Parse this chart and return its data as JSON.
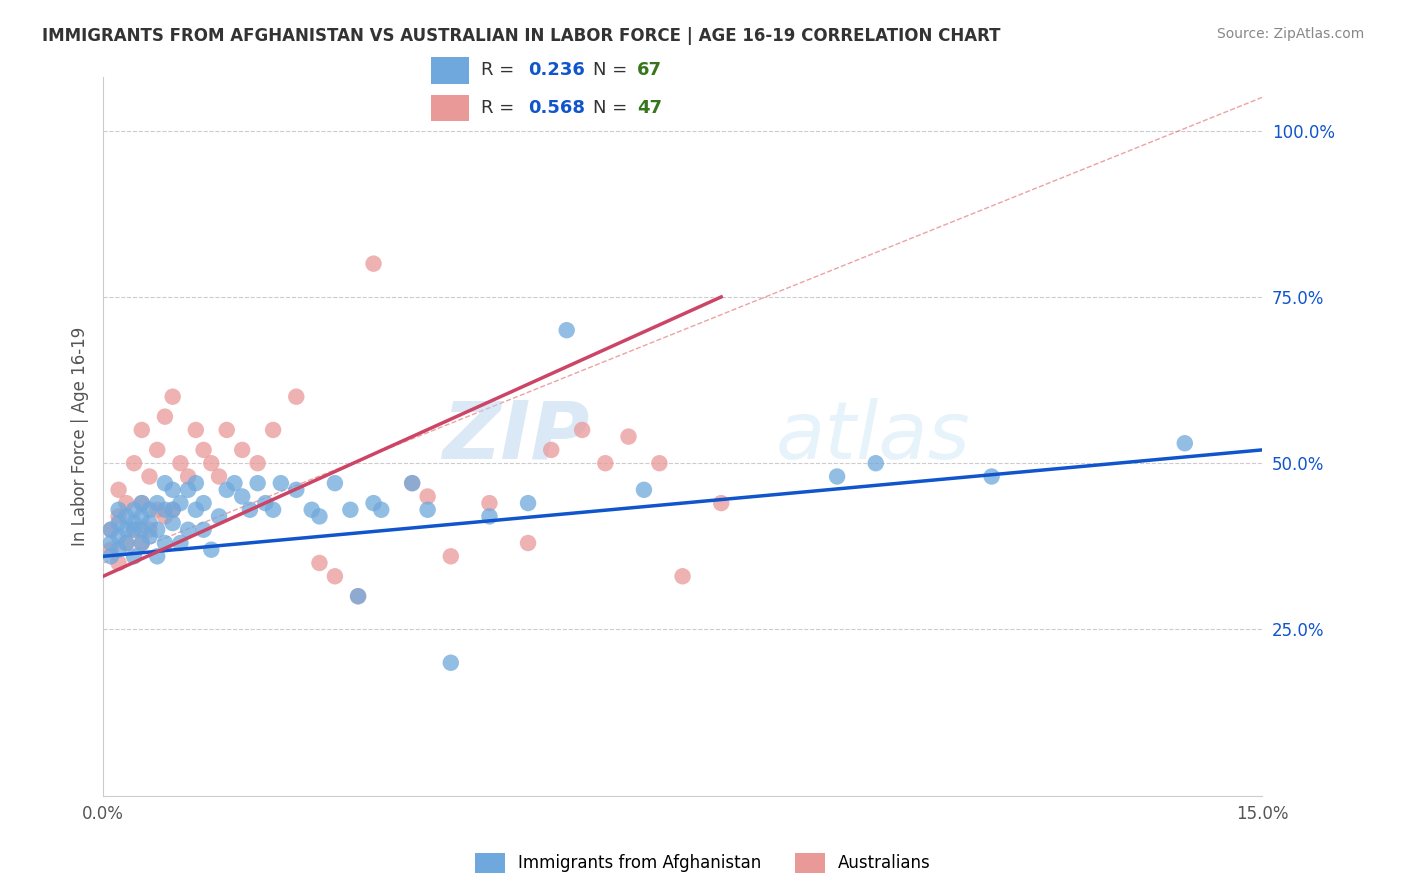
{
  "title": "IMMIGRANTS FROM AFGHANISTAN VS AUSTRALIAN IN LABOR FORCE | AGE 16-19 CORRELATION CHART",
  "source": "Source: ZipAtlas.com",
  "ylabel": "In Labor Force | Age 16-19",
  "xlim": [
    0.0,
    0.15
  ],
  "ylim": [
    0.0,
    1.08
  ],
  "xticks": [
    0.0,
    0.03,
    0.06,
    0.09,
    0.12,
    0.15
  ],
  "xtick_labels": [
    "0.0%",
    "",
    "",
    "",
    "",
    "15.0%"
  ],
  "yticks": [
    0.0,
    0.25,
    0.5,
    0.75,
    1.0
  ],
  "ytick_labels": [
    "",
    "25.0%",
    "50.0%",
    "75.0%",
    "100.0%"
  ],
  "blue_color": "#6fa8dc",
  "pink_color": "#ea9999",
  "blue_line_color": "#1155cc",
  "pink_line_color": "#cc4466",
  "diag_line_color": "#e06666",
  "R_blue": 0.236,
  "N_blue": 67,
  "R_pink": 0.568,
  "N_pink": 47,
  "blue_scatter_x": [
    0.001,
    0.001,
    0.001,
    0.002,
    0.002,
    0.002,
    0.002,
    0.003,
    0.003,
    0.003,
    0.004,
    0.004,
    0.004,
    0.004,
    0.005,
    0.005,
    0.005,
    0.005,
    0.006,
    0.006,
    0.006,
    0.007,
    0.007,
    0.007,
    0.008,
    0.008,
    0.008,
    0.009,
    0.009,
    0.009,
    0.01,
    0.01,
    0.011,
    0.011,
    0.012,
    0.012,
    0.013,
    0.013,
    0.014,
    0.015,
    0.016,
    0.017,
    0.018,
    0.019,
    0.02,
    0.021,
    0.022,
    0.023,
    0.025,
    0.027,
    0.028,
    0.03,
    0.032,
    0.033,
    0.035,
    0.036,
    0.04,
    0.042,
    0.045,
    0.05,
    0.055,
    0.06,
    0.07,
    0.095,
    0.1,
    0.115,
    0.14
  ],
  "blue_scatter_y": [
    0.36,
    0.4,
    0.38,
    0.37,
    0.41,
    0.43,
    0.39,
    0.4,
    0.42,
    0.38,
    0.36,
    0.4,
    0.43,
    0.41,
    0.38,
    0.42,
    0.44,
    0.4,
    0.39,
    0.43,
    0.41,
    0.36,
    0.4,
    0.44,
    0.38,
    0.43,
    0.47,
    0.41,
    0.43,
    0.46,
    0.38,
    0.44,
    0.4,
    0.46,
    0.43,
    0.47,
    0.4,
    0.44,
    0.37,
    0.42,
    0.46,
    0.47,
    0.45,
    0.43,
    0.47,
    0.44,
    0.43,
    0.47,
    0.46,
    0.43,
    0.42,
    0.47,
    0.43,
    0.3,
    0.44,
    0.43,
    0.47,
    0.43,
    0.2,
    0.42,
    0.44,
    0.7,
    0.46,
    0.48,
    0.5,
    0.48,
    0.53
  ],
  "pink_scatter_x": [
    0.001,
    0.001,
    0.002,
    0.002,
    0.002,
    0.003,
    0.003,
    0.004,
    0.004,
    0.005,
    0.005,
    0.005,
    0.006,
    0.006,
    0.007,
    0.007,
    0.008,
    0.008,
    0.009,
    0.009,
    0.01,
    0.011,
    0.012,
    0.013,
    0.014,
    0.015,
    0.016,
    0.018,
    0.02,
    0.022,
    0.025,
    0.028,
    0.03,
    0.033,
    0.035,
    0.04,
    0.042,
    0.045,
    0.05,
    0.055,
    0.058,
    0.062,
    0.065,
    0.068,
    0.072,
    0.075,
    0.08
  ],
  "pink_scatter_y": [
    0.37,
    0.4,
    0.35,
    0.42,
    0.46,
    0.38,
    0.44,
    0.4,
    0.5,
    0.38,
    0.44,
    0.55,
    0.4,
    0.48,
    0.43,
    0.52,
    0.42,
    0.57,
    0.43,
    0.6,
    0.5,
    0.48,
    0.55,
    0.52,
    0.5,
    0.48,
    0.55,
    0.52,
    0.5,
    0.55,
    0.6,
    0.35,
    0.33,
    0.3,
    0.8,
    0.47,
    0.45,
    0.36,
    0.44,
    0.38,
    0.52,
    0.55,
    0.5,
    0.54,
    0.5,
    0.33,
    0.44
  ],
  "watermark_zip": "ZIP",
  "watermark_atlas": "atlas",
  "legend_blue_label": "Immigrants from Afghanistan",
  "legend_pink_label": "Australians"
}
